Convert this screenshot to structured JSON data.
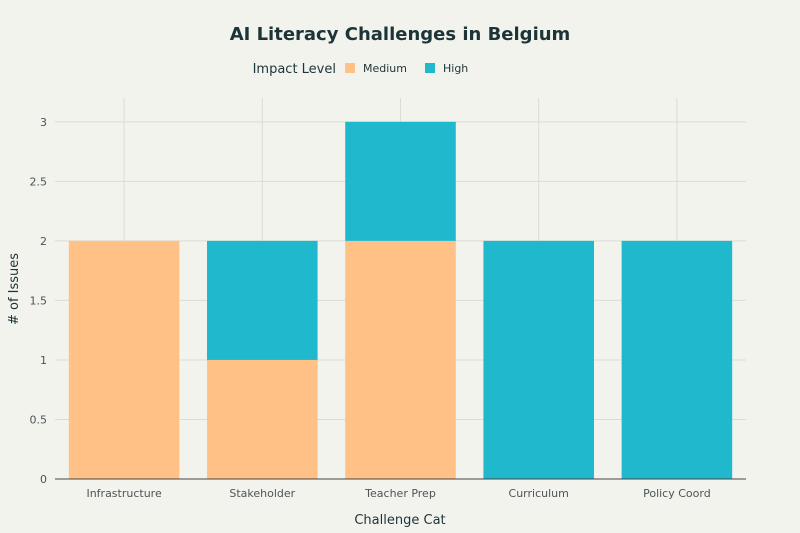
{
  "chart_data": {
    "type": "bar",
    "stacked": true,
    "title": "AI Literacy Challenges in Belgium",
    "xlabel": "Challenge Cat",
    "ylabel": "# of Issues",
    "legend_title": "Impact Level",
    "legend_position": "top-center",
    "grid": true,
    "categories": [
      "Infrastructure",
      "Stakeholder",
      "Teacher Prep",
      "Curriculum",
      "Policy Coord"
    ],
    "series": [
      {
        "name": "Medium",
        "color": "#ffc185",
        "values": [
          2,
          1,
          2,
          0,
          0
        ]
      },
      {
        "name": "High",
        "color": "#1fb8cd",
        "values": [
          0,
          1,
          1,
          2,
          2
        ]
      }
    ],
    "ylim": [
      0,
      3.2
    ],
    "yticks": [
      0,
      0.5,
      1,
      1.5,
      2,
      2.5,
      3
    ],
    "ytick_labels": [
      "0",
      "0.5",
      "1",
      "1.5",
      "2",
      "2.5",
      "3"
    ]
  }
}
